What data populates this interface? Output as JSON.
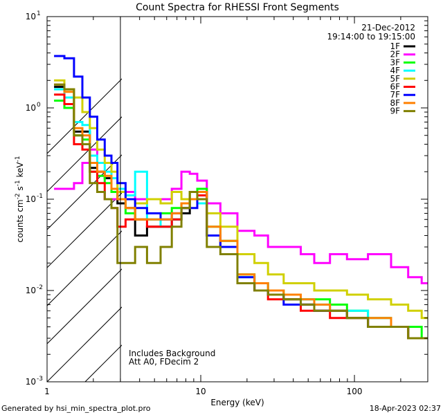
{
  "chart_data": {
    "type": "line",
    "title": "Count Spectra for RHESSI Front Segments",
    "xlabel": "Energy (keV)",
    "ylabel": "counts cm-2 s-1 keV-1",
    "xscale": "log",
    "yscale": "log",
    "xlim": [
      1,
      300
    ],
    "ylim": [
      0.001,
      10
    ],
    "x_tick_labels": [
      "1",
      "10",
      "100"
    ],
    "y_tick_labels": [
      {
        "base": "10",
        "exp": "-3"
      },
      {
        "base": "10",
        "exp": "-2"
      },
      {
        "base": "10",
        "exp": "-1"
      },
      {
        "base": "10",
        "exp": "0"
      },
      {
        "base": "10",
        "exp": "1"
      }
    ],
    "date": "21-Dec-2012",
    "time_range": "19:14:00 to 19:15:00",
    "annotation_line1": "Includes Background",
    "annotation_line2": "Att A0, FDecim 2",
    "hatched_region_max_keV": 3,
    "legend_position": "top-right",
    "series": [
      {
        "name": "1F",
        "color": "#000000",
        "x": [
          1.2,
          1.4,
          1.6,
          1.8,
          2.0,
          2.25,
          2.5,
          2.75,
          3.0,
          3.5,
          4.0,
          5.0,
          6.0,
          7.0,
          8.0,
          9.0,
          10.0,
          12.0,
          15.0,
          20.0,
          25.0,
          30.0,
          40.0,
          50.0,
          60.0,
          80.0,
          100.0,
          150.0,
          200.0,
          250.0,
          300.0
        ],
        "values": [
          1.7,
          1.3,
          0.55,
          0.55,
          0.22,
          0.2,
          0.17,
          0.12,
          0.09,
          0.08,
          0.04,
          0.05,
          0.05,
          0.06,
          0.07,
          0.1,
          0.1,
          0.04,
          0.03,
          0.012,
          0.01,
          0.009,
          0.008,
          0.007,
          0.006,
          0.006,
          0.005,
          0.004,
          0.004,
          0.003,
          0.003
        ]
      },
      {
        "name": "2F",
        "color": "#ff00ff",
        "x": [
          1.2,
          1.4,
          1.6,
          1.8,
          2.0,
          2.25,
          2.5,
          2.75,
          3.0,
          3.5,
          4.0,
          5.0,
          6.0,
          7.0,
          8.0,
          9.0,
          10.0,
          12.0,
          15.0,
          20.0,
          25.0,
          30.0,
          40.0,
          50.0,
          60.0,
          80.0,
          100.0,
          150.0,
          200.0,
          250.0,
          300.0
        ],
        "values": [
          0.13,
          0.13,
          0.15,
          0.25,
          0.35,
          0.12,
          0.1,
          0.1,
          0.1,
          0.12,
          0.1,
          0.1,
          0.1,
          0.13,
          0.2,
          0.19,
          0.16,
          0.09,
          0.07,
          0.045,
          0.04,
          0.03,
          0.03,
          0.025,
          0.02,
          0.025,
          0.022,
          0.025,
          0.018,
          0.014,
          0.012
        ]
      },
      {
        "name": "3F",
        "color": "#00ff00",
        "x": [
          1.2,
          1.4,
          1.6,
          1.8,
          2.0,
          2.25,
          2.5,
          2.75,
          3.0,
          3.5,
          4.0,
          5.0,
          6.0,
          7.0,
          8.0,
          9.0,
          10.0,
          12.0,
          15.0,
          20.0,
          25.0,
          30.0,
          40.0,
          50.0,
          60.0,
          80.0,
          100.0,
          150.0,
          200.0,
          250.0,
          300.0
        ],
        "values": [
          1.2,
          1.0,
          0.5,
          0.45,
          0.2,
          0.18,
          0.15,
          0.12,
          0.1,
          0.07,
          0.06,
          0.06,
          0.07,
          0.08,
          0.09,
          0.12,
          0.13,
          0.05,
          0.035,
          0.015,
          0.012,
          0.01,
          0.009,
          0.008,
          0.008,
          0.007,
          0.006,
          0.005,
          0.004,
          0.004,
          0.003
        ]
      },
      {
        "name": "4F",
        "color": "#00ffff",
        "x": [
          1.2,
          1.4,
          1.6,
          1.8,
          2.0,
          2.25,
          2.5,
          2.75,
          3.0,
          3.5,
          4.0,
          5.0,
          6.0,
          7.0,
          8.0,
          9.0,
          10.0,
          12.0,
          15.0,
          20.0,
          25.0,
          30.0,
          40.0,
          50.0,
          60.0,
          80.0,
          100.0,
          150.0,
          200.0,
          250.0,
          300.0
        ],
        "values": [
          1.6,
          1.3,
          0.7,
          0.65,
          0.3,
          0.25,
          0.2,
          0.17,
          0.13,
          0.11,
          0.2,
          0.06,
          0.05,
          0.06,
          0.08,
          0.1,
          0.09,
          0.04,
          0.03,
          0.014,
          0.012,
          0.009,
          0.008,
          0.008,
          0.007,
          0.006,
          0.006,
          0.005,
          0.004,
          0.003,
          0.003
        ]
      },
      {
        "name": "5F",
        "color": "#d0d000",
        "x": [
          1.2,
          1.4,
          1.6,
          1.8,
          2.0,
          2.25,
          2.5,
          2.75,
          3.0,
          3.5,
          4.0,
          5.0,
          6.0,
          7.0,
          8.0,
          9.0,
          10.0,
          12.0,
          15.0,
          20.0,
          25.0,
          30.0,
          40.0,
          50.0,
          60.0,
          80.0,
          100.0,
          150.0,
          200.0,
          250.0,
          300.0
        ],
        "values": [
          2.0,
          1.6,
          1.3,
          0.9,
          0.6,
          0.35,
          0.25,
          0.2,
          0.12,
          0.1,
          0.09,
          0.1,
          0.09,
          0.12,
          0.1,
          0.12,
          0.1,
          0.07,
          0.05,
          0.025,
          0.02,
          0.015,
          0.012,
          0.012,
          0.01,
          0.01,
          0.009,
          0.008,
          0.007,
          0.006,
          0.005
        ]
      },
      {
        "name": "6F",
        "color": "#ff0000",
        "x": [
          1.2,
          1.4,
          1.6,
          1.8,
          2.0,
          2.25,
          2.5,
          2.75,
          3.0,
          3.5,
          4.0,
          5.0,
          6.0,
          7.0,
          8.0,
          9.0,
          10.0,
          12.0,
          15.0,
          20.0,
          25.0,
          30.0,
          40.0,
          50.0,
          60.0,
          80.0,
          100.0,
          150.0,
          200.0,
          250.0,
          300.0
        ],
        "values": [
          1.4,
          1.1,
          0.4,
          0.35,
          0.2,
          0.15,
          0.1,
          0.08,
          0.05,
          0.06,
          0.06,
          0.05,
          0.05,
          0.06,
          0.08,
          0.1,
          0.11,
          0.04,
          0.03,
          0.012,
          0.01,
          0.008,
          0.008,
          0.006,
          0.006,
          0.005,
          0.005,
          0.004,
          0.004,
          0.003,
          0.003
        ]
      },
      {
        "name": "7F",
        "color": "#0000ff",
        "x": [
          1.2,
          1.4,
          1.6,
          1.8,
          2.0,
          2.25,
          2.5,
          2.75,
          3.0,
          3.5,
          4.0,
          5.0,
          6.0,
          7.0,
          8.0,
          9.0,
          10.0,
          12.0,
          15.0,
          20.0,
          25.0,
          30.0,
          40.0,
          50.0,
          60.0,
          80.0,
          100.0,
          150.0,
          200.0,
          250.0,
          300.0
        ],
        "values": [
          3.7,
          3.5,
          2.2,
          1.3,
          0.8,
          0.45,
          0.3,
          0.25,
          0.15,
          0.1,
          0.08,
          0.07,
          0.06,
          0.07,
          0.08,
          0.08,
          0.12,
          0.04,
          0.03,
          0.014,
          0.01,
          0.009,
          0.007,
          0.007,
          0.006,
          0.006,
          0.005,
          0.004,
          0.004,
          0.003,
          0.003
        ]
      },
      {
        "name": "8F",
        "color": "#ff8000",
        "x": [
          1.2,
          1.4,
          1.6,
          1.8,
          2.0,
          2.25,
          2.5,
          2.75,
          3.0,
          3.5,
          4.0,
          5.0,
          6.0,
          7.0,
          8.0,
          9.0,
          10.0,
          12.0,
          15.0,
          20.0,
          25.0,
          30.0,
          40.0,
          50.0,
          60.0,
          80.0,
          100.0,
          150.0,
          200.0,
          250.0,
          300.0
        ],
        "values": [
          1.8,
          1.5,
          0.6,
          0.5,
          0.25,
          0.2,
          0.18,
          0.13,
          0.1,
          0.08,
          0.06,
          0.06,
          0.06,
          0.07,
          0.09,
          0.1,
          0.12,
          0.05,
          0.035,
          0.015,
          0.012,
          0.01,
          0.009,
          0.008,
          0.007,
          0.006,
          0.005,
          0.005,
          0.004,
          0.003,
          0.003
        ]
      },
      {
        "name": "9F",
        "color": "#808000",
        "x": [
          1.2,
          1.4,
          1.6,
          1.8,
          2.0,
          2.25,
          2.5,
          2.75,
          3.0,
          3.5,
          4.0,
          5.0,
          6.0,
          7.0,
          8.0,
          9.0,
          10.0,
          12.0,
          15.0,
          20.0,
          25.0,
          30.0,
          40.0,
          50.0,
          60.0,
          80.0,
          100.0,
          150.0,
          200.0,
          250.0,
          300.0
        ],
        "values": [
          1.8,
          1.6,
          0.5,
          0.4,
          0.15,
          0.12,
          0.1,
          0.08,
          0.02,
          0.02,
          0.03,
          0.02,
          0.03,
          0.05,
          0.08,
          0.12,
          0.1,
          0.03,
          0.025,
          0.012,
          0.01,
          0.009,
          0.008,
          0.007,
          0.006,
          0.006,
          0.005,
          0.004,
          0.004,
          0.003,
          0.003
        ]
      }
    ]
  },
  "footer": {
    "generated_by": "Generated by hsi_min_spectra_plot.pro",
    "timestamp": "18-Apr-2023 02:37"
  }
}
